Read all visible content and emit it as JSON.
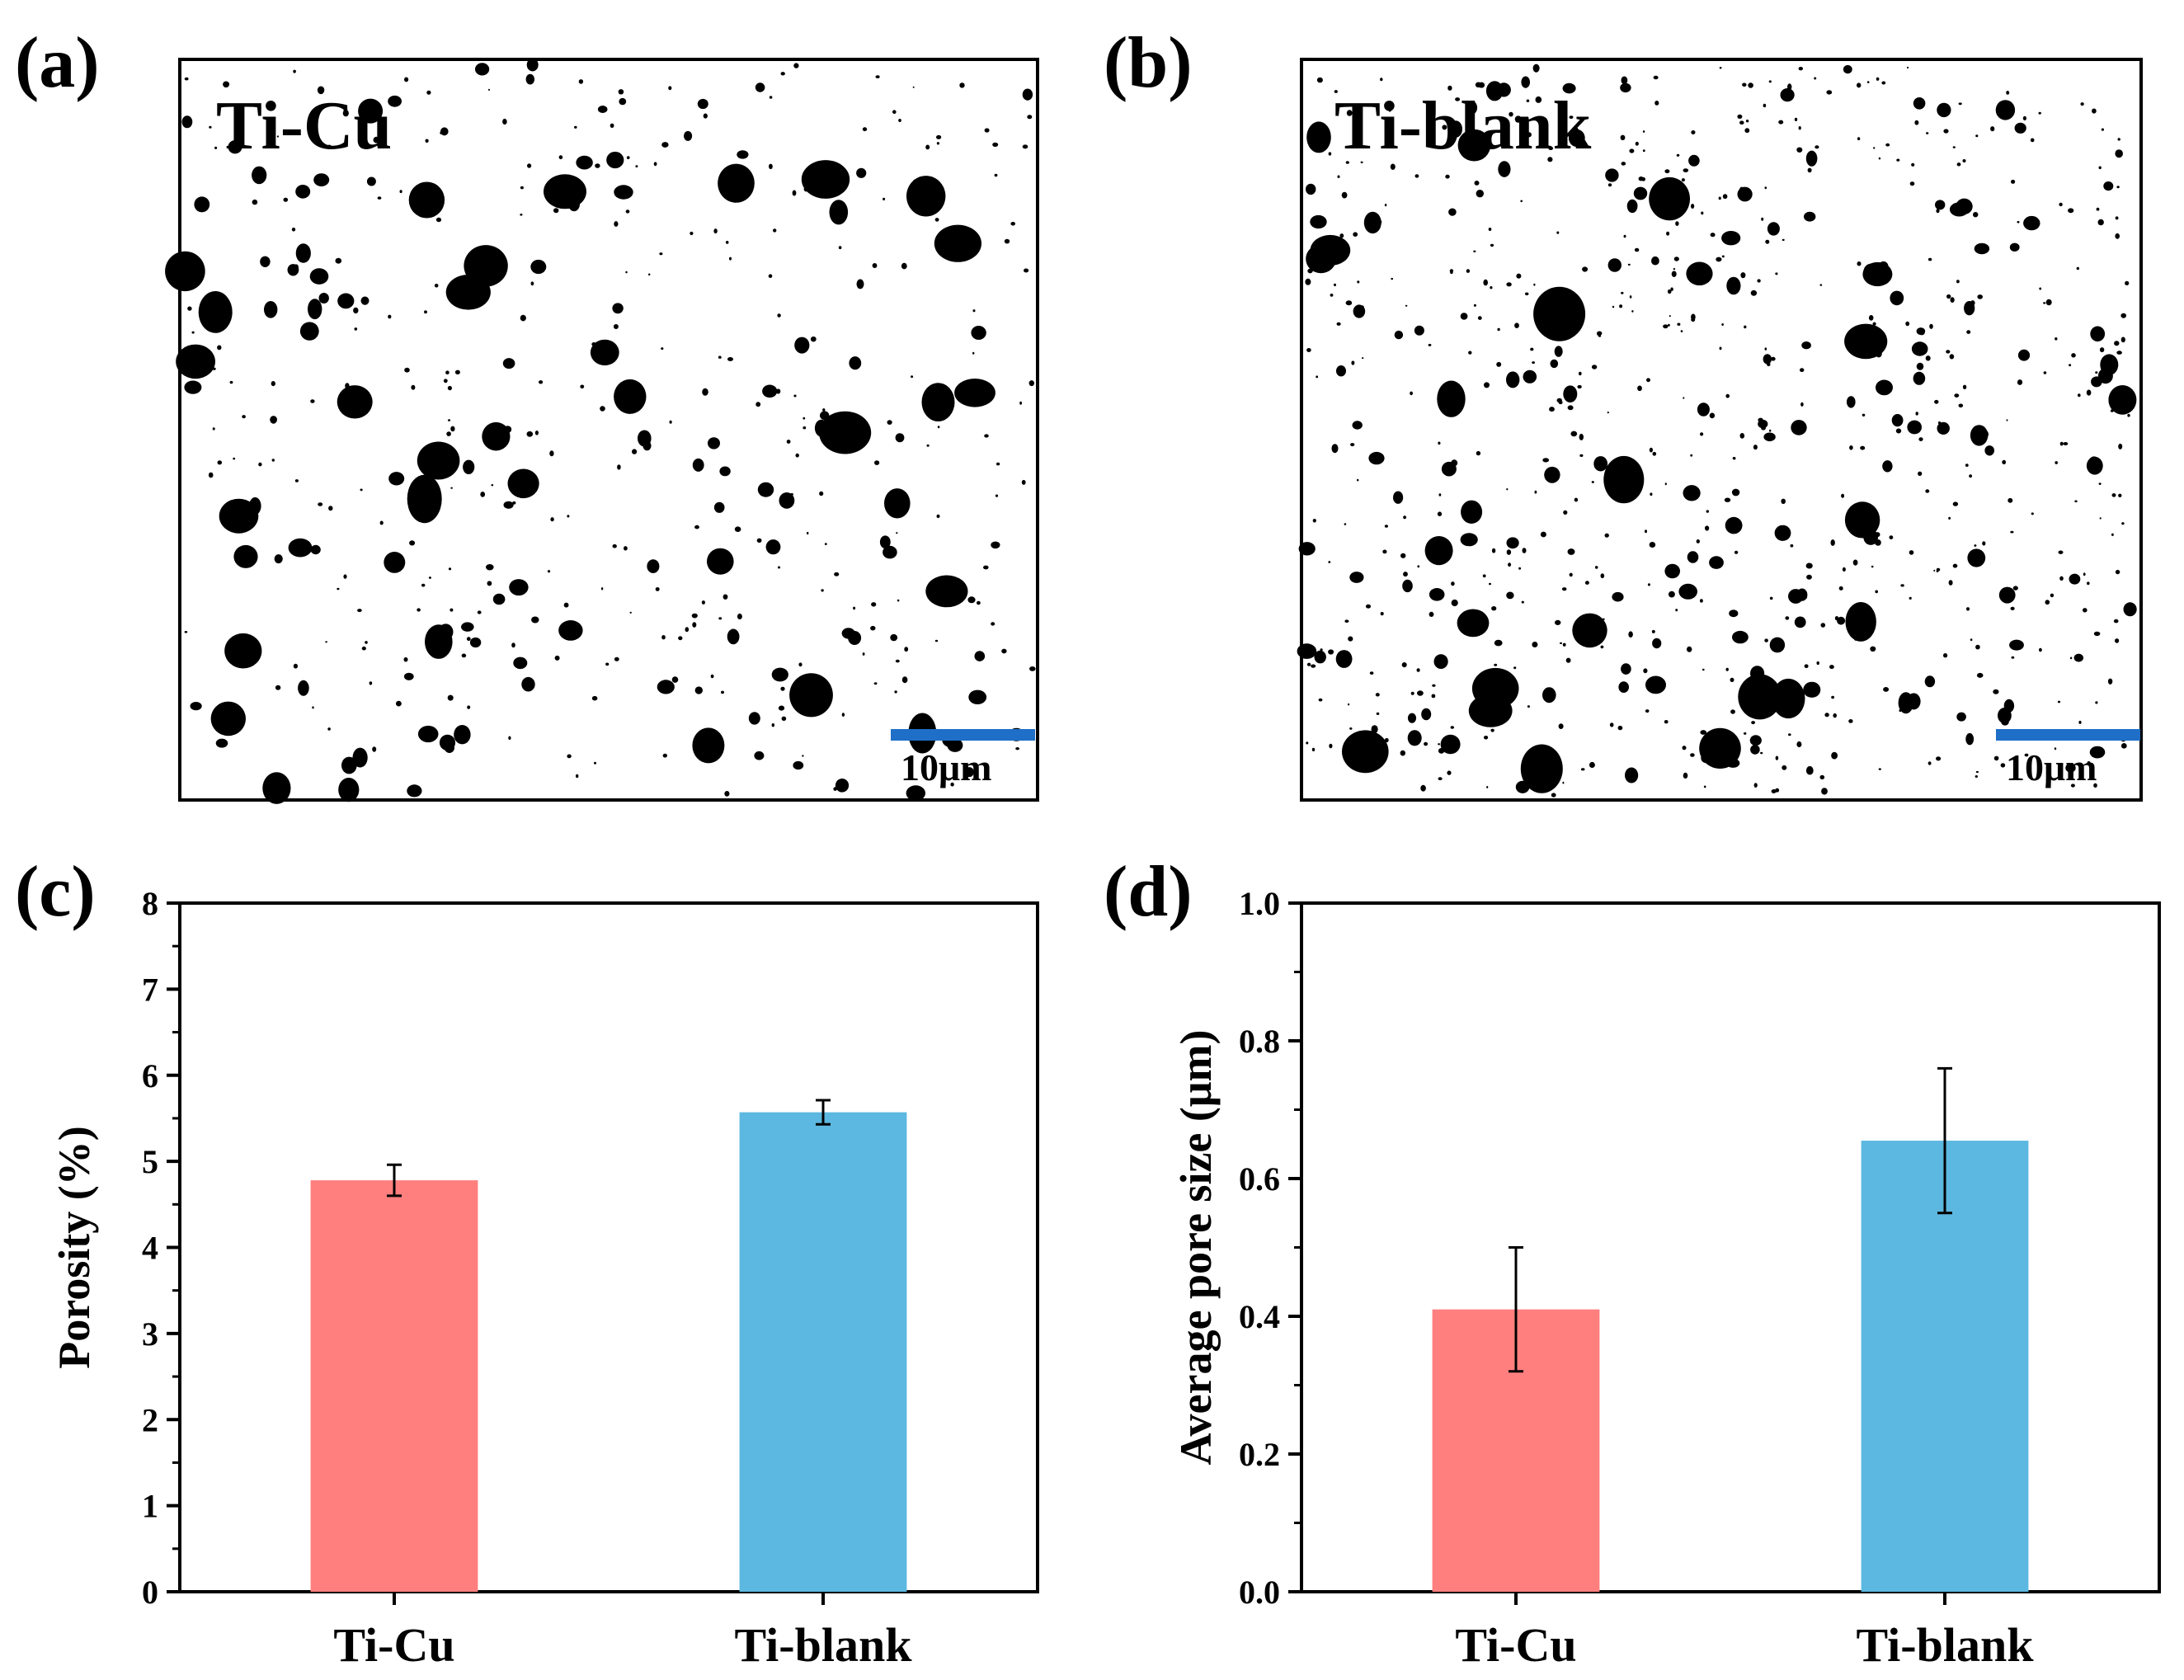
{
  "panels": {
    "a": {
      "letter": "(a)",
      "label": "Ti-Cu",
      "scale_bar": "10μm"
    },
    "b": {
      "letter": "(b)",
      "label": "Ti-blank",
      "scale_bar": "10μm"
    },
    "c": {
      "letter": "(c)"
    },
    "d": {
      "letter": "(d)"
    }
  },
  "colors": {
    "ti_cu": "#ff7f7f",
    "ti_blank": "#5cb8e0",
    "scale_bar": "#1f6fc8"
  },
  "chart_data": [
    {
      "type": "bar",
      "panel": "c",
      "categories": [
        "Ti-Cu",
        "Ti-blank"
      ],
      "values": [
        4.78,
        5.57
      ],
      "errors": [
        0.18,
        0.14
      ],
      "ylabel": "Porosity (%)",
      "ylim": [
        0,
        8
      ],
      "yticks": [
        "0",
        "1",
        "2",
        "3",
        "4",
        "5",
        "6",
        "7",
        "8"
      ],
      "grid": false
    },
    {
      "type": "bar",
      "panel": "d",
      "categories": [
        "Ti-Cu",
        "Ti-blank"
      ],
      "values": [
        0.41,
        0.655
      ],
      "errors": [
        0.09,
        0.105
      ],
      "ylabel": "Average pore size (μm)",
      "ylim": [
        0,
        1.0
      ],
      "yticks": [
        "0.0",
        "0.2",
        "0.4",
        "0.6",
        "0.8",
        "1.0"
      ],
      "grid": false
    }
  ]
}
